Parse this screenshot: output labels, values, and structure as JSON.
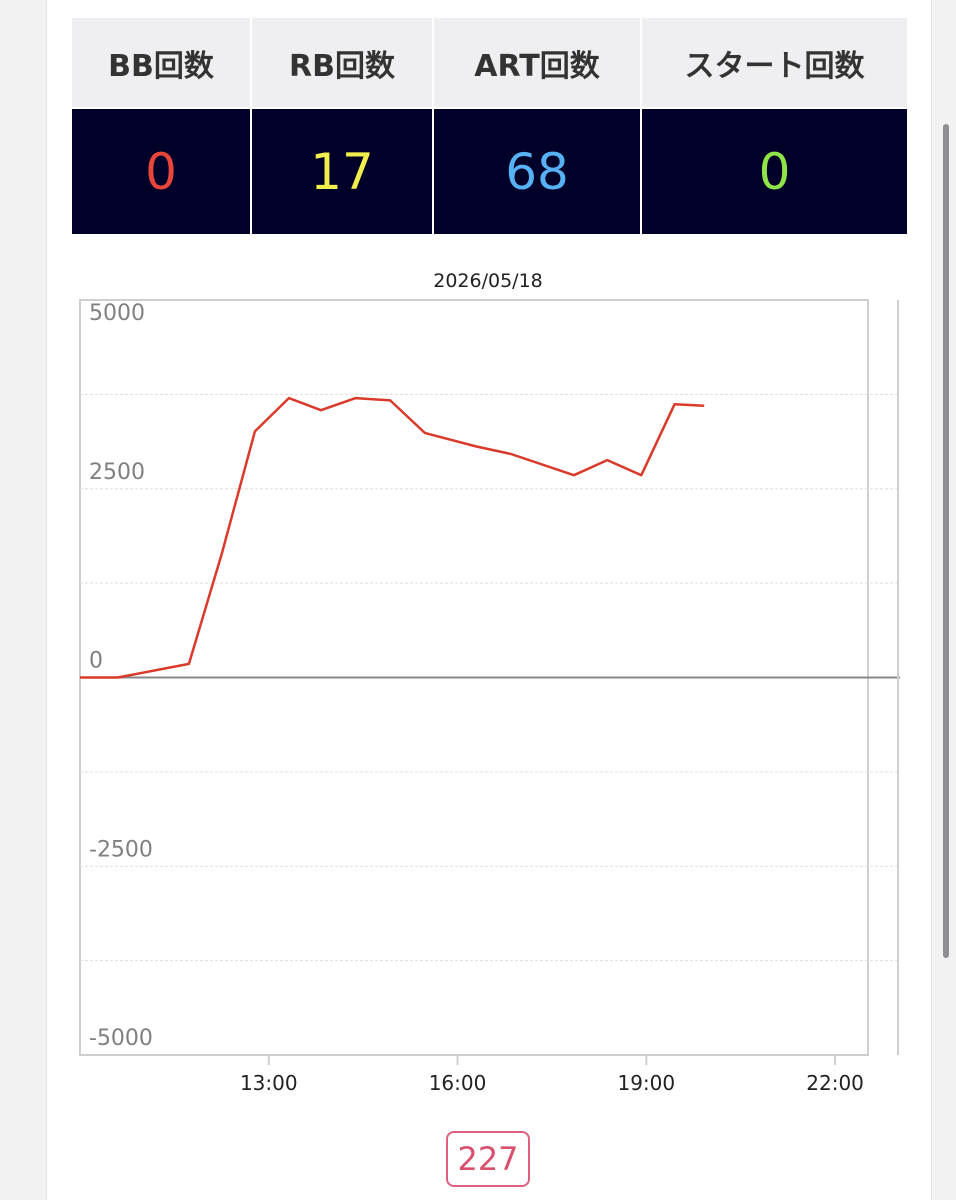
{
  "stats": {
    "headers": [
      "BB回数",
      "RB回数",
      "ART回数",
      "スタート回数"
    ],
    "values": [
      "0",
      "17",
      "68",
      "0"
    ],
    "colors": [
      "#e8463a",
      "#f1ee4e",
      "#56b2f4",
      "#8fe547"
    ]
  },
  "chart_data": {
    "type": "line",
    "title": "2026/05/18",
    "xlabel": "",
    "ylabel": "",
    "x_ticks": [
      "13:00",
      "16:00",
      "19:00",
      "22:00"
    ],
    "x_tick_hours": [
      13,
      16,
      19,
      22
    ],
    "x_range_hours": [
      10.0,
      23.0
    ],
    "ylim": [
      -5000,
      5000
    ],
    "y_ticks": [
      5000,
      2500,
      0,
      -2500,
      -5000
    ],
    "grid": true,
    "series": [
      {
        "color": "#d93a2a",
        "x_hours": [
          10.0,
          10.6,
          11.73,
          12.25,
          12.78,
          13.32,
          13.83,
          14.38,
          14.93,
          15.48,
          16.3,
          16.85,
          17.85,
          18.38,
          18.92,
          19.45,
          19.92
        ],
        "values": [
          0,
          0,
          180,
          1630,
          3260,
          3700,
          3540,
          3700,
          3670,
          3240,
          3060,
          2960,
          2680,
          2880,
          2680,
          3620,
          3600
        ]
      }
    ]
  },
  "counter": {
    "value": "227"
  }
}
